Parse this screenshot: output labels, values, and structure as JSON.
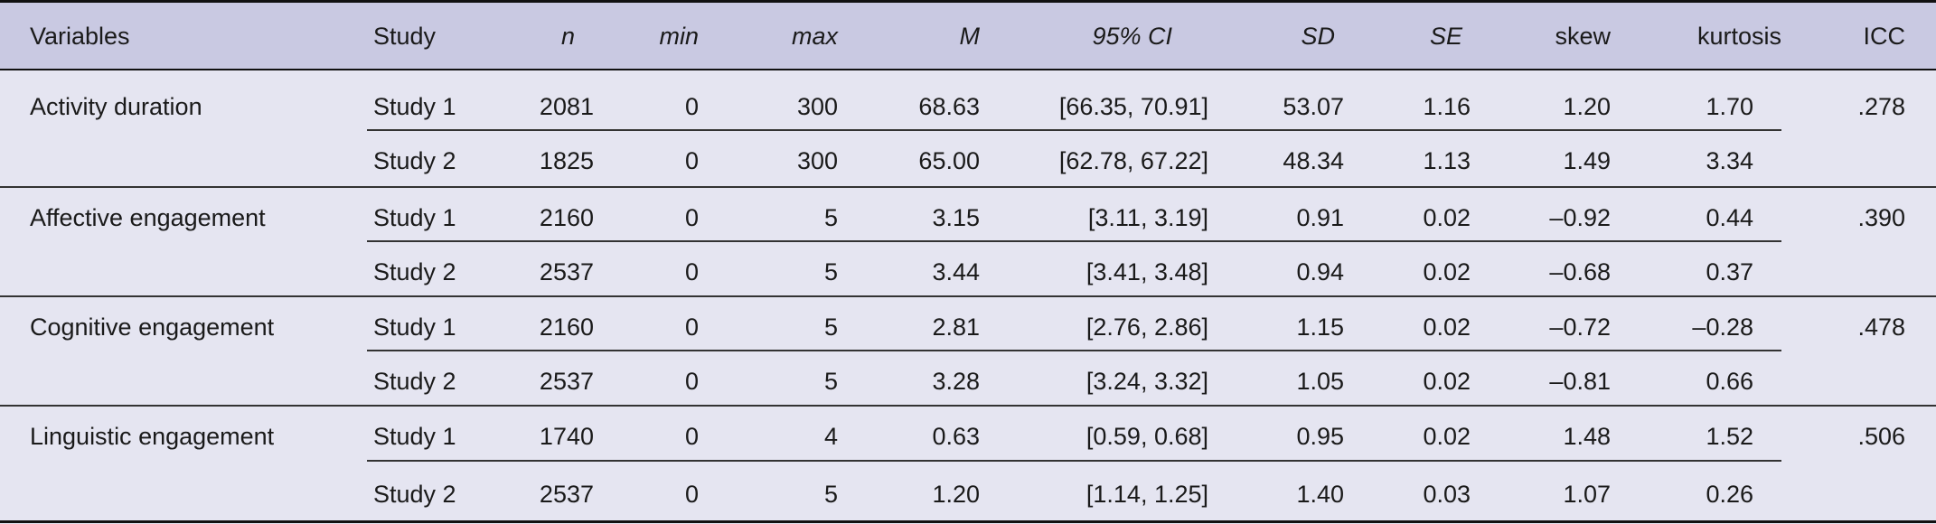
{
  "table": {
    "columns": [
      "Variables",
      "Study",
      "n",
      "min",
      "max",
      "M",
      "95% CI",
      "SD",
      "SE",
      "skew",
      "kurtosis",
      "ICC"
    ],
    "groups": [
      {
        "variable": "Activity duration",
        "icc": ".278",
        "rows": [
          {
            "study": "Study 1",
            "n": "2081",
            "min": "0",
            "max": "300",
            "m": "68.63",
            "ci": "[66.35, 70.91]",
            "sd": "53.07",
            "se": "1.16",
            "skew": "1.20",
            "kurtosis": "1.70"
          },
          {
            "study": "Study 2",
            "n": "1825",
            "min": "0",
            "max": "300",
            "m": "65.00",
            "ci": "[62.78, 67.22]",
            "sd": "48.34",
            "se": "1.13",
            "skew": "1.49",
            "kurtosis": "3.34"
          }
        ]
      },
      {
        "variable": "Affective engagement",
        "icc": ".390",
        "rows": [
          {
            "study": "Study 1",
            "n": "2160",
            "min": "0",
            "max": "5",
            "m": "3.15",
            "ci": "[3.11, 3.19]",
            "sd": "0.91",
            "se": "0.02",
            "skew": "–0.92",
            "kurtosis": "0.44"
          },
          {
            "study": "Study 2",
            "n": "2537",
            "min": "0",
            "max": "5",
            "m": "3.44",
            "ci": "[3.41, 3.48]",
            "sd": "0.94",
            "se": "0.02",
            "skew": "–0.68",
            "kurtosis": "0.37"
          }
        ]
      },
      {
        "variable": "Cognitive engagement",
        "icc": ".478",
        "rows": [
          {
            "study": "Study 1",
            "n": "2160",
            "min": "0",
            "max": "5",
            "m": "2.81",
            "ci": "[2.76, 2.86]",
            "sd": "1.15",
            "se": "0.02",
            "skew": "–0.72",
            "kurtosis": "–0.28"
          },
          {
            "study": "Study 2",
            "n": "2537",
            "min": "0",
            "max": "5",
            "m": "3.28",
            "ci": "[3.24, 3.32]",
            "sd": "1.05",
            "se": "0.02",
            "skew": "–0.81",
            "kurtosis": "0.66"
          }
        ]
      },
      {
        "variable": "Linguistic engagement",
        "icc": ".506",
        "rows": [
          {
            "study": "Study 1",
            "n": "1740",
            "min": "0",
            "max": "4",
            "m": "0.63",
            "ci": "[0.59, 0.68]",
            "sd": "0.95",
            "se": "0.02",
            "skew": "1.48",
            "kurtosis": "1.52"
          },
          {
            "study": "Study 2",
            "n": "2537",
            "min": "0",
            "max": "5",
            "m": "1.20",
            "ci": "[1.14, 1.25]",
            "sd": "1.40",
            "se": "0.03",
            "skew": "1.07",
            "kurtosis": "0.26"
          }
        ]
      }
    ]
  }
}
